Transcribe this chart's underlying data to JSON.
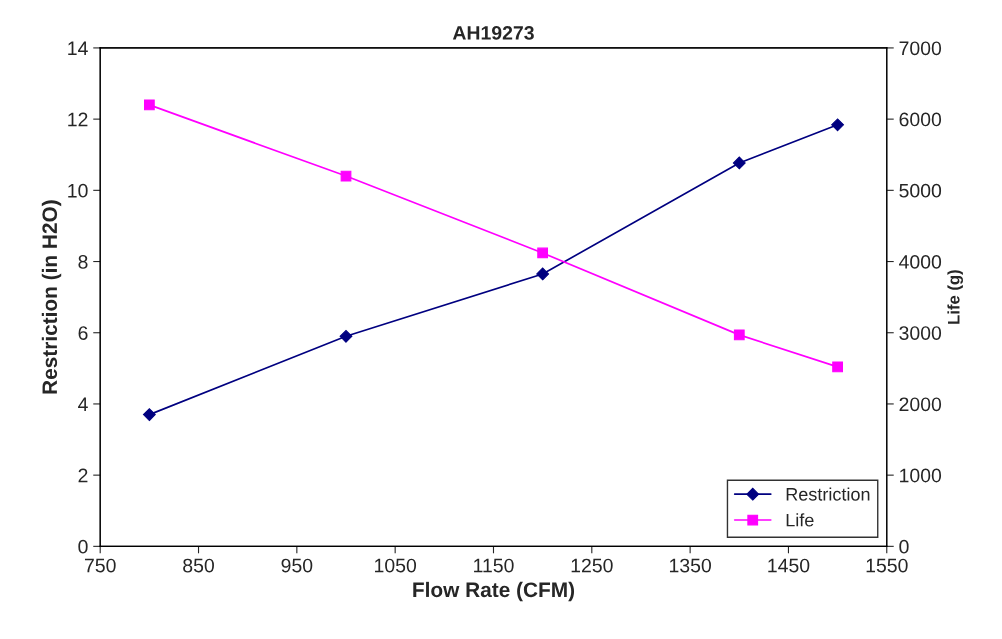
{
  "chart_data": {
    "type": "line",
    "title": "AH19273",
    "xlabel": "Flow Rate (CFM)",
    "ylabel": "Restriction (in H2O)",
    "y2label": "Life (g)",
    "x": [
      800,
      1000,
      1200,
      1400,
      1500
    ],
    "series": [
      {
        "name": "Restriction",
        "color": "#000080",
        "marker": "diamond",
        "values": [
          3.7,
          5.9,
          7.65,
          10.77,
          11.84
        ]
      },
      {
        "name": "Life",
        "color": "#ff00ff",
        "marker": "square",
        "axis": "y2",
        "values": [
          6200,
          5200,
          4120,
          2970,
          2520
        ]
      }
    ],
    "xlim": [
      750,
      1550
    ],
    "xticks": [
      750,
      850,
      950,
      1050,
      1150,
      1250,
      1350,
      1450,
      1550
    ],
    "ylim": [
      0,
      14
    ],
    "yticks": [
      0,
      2,
      4,
      6,
      8,
      10,
      12,
      14
    ],
    "y2lim": [
      0,
      7000
    ],
    "y2ticks": [
      0,
      1000,
      2000,
      3000,
      4000,
      5000,
      6000,
      7000
    ],
    "grid": false,
    "legend": "bottom right",
    "line_style": "solid"
  }
}
